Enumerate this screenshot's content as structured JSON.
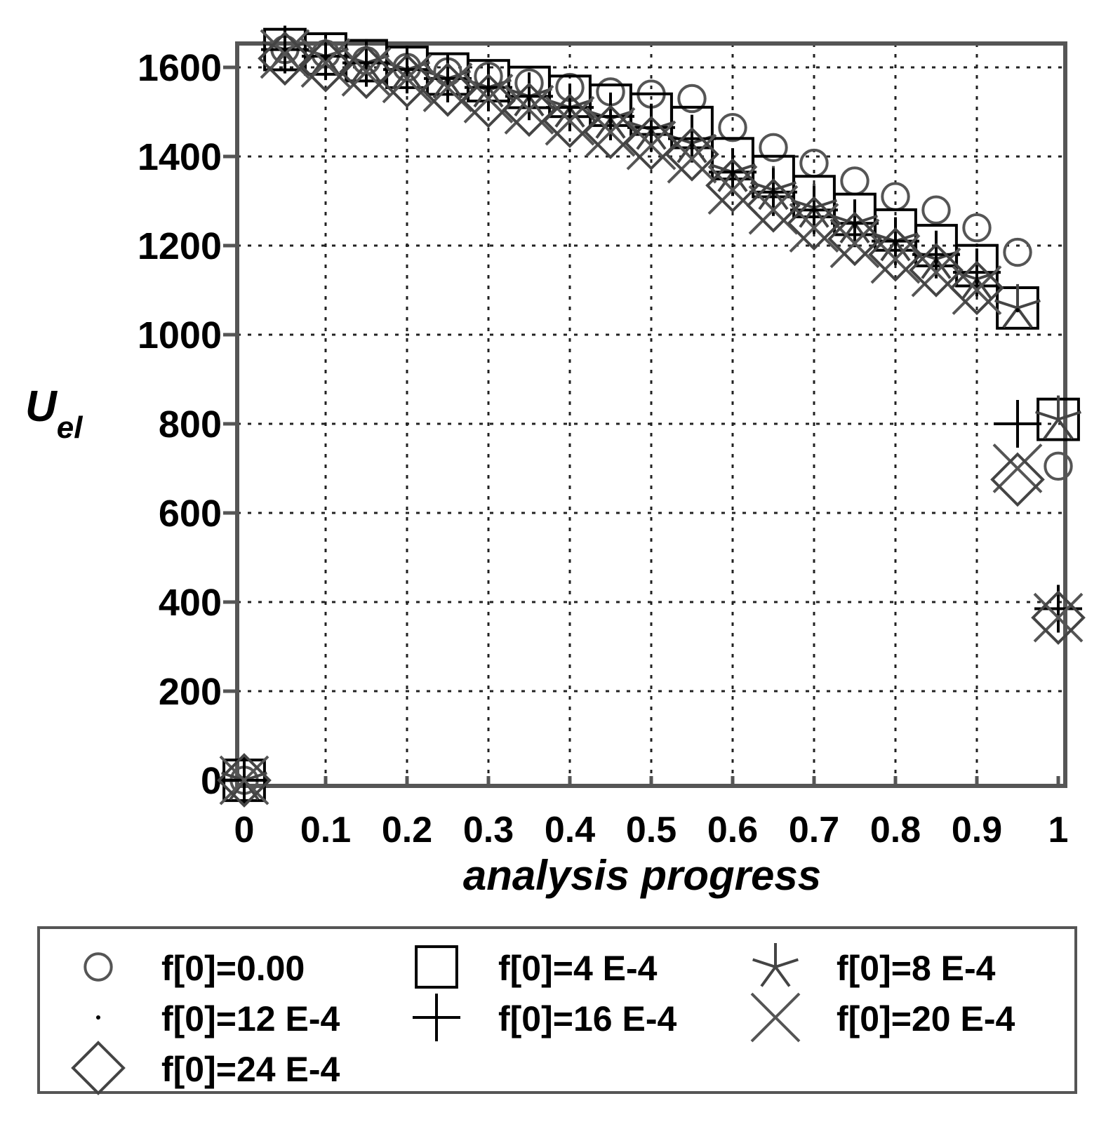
{
  "chart_data": {
    "type": "scatter",
    "title": "",
    "xlabel": "analysis progress",
    "ylabel_main": "U",
    "ylabel_sub": "el",
    "xlim": [
      0,
      1
    ],
    "ylim": [
      0,
      1650
    ],
    "xticks": [
      0,
      0.1,
      0.2,
      0.3,
      0.4,
      0.5,
      0.6,
      0.7,
      0.8,
      0.9,
      1
    ],
    "xtick_labels": [
      "0",
      "0.1",
      "0.2",
      "0.3",
      "0.4",
      "0.5",
      "0.6",
      "0.7",
      "0.8",
      "0.9",
      "1"
    ],
    "yticks": [
      0,
      200,
      400,
      600,
      800,
      1000,
      1200,
      1400,
      1600
    ],
    "ytick_labels": [
      "0",
      "200",
      "400",
      "600",
      "800",
      "1000",
      "1200",
      "1400",
      "1600"
    ],
    "grid": true,
    "legend_position": "bottom",
    "series": [
      {
        "name": "f[0]=0.00",
        "marker": "circle",
        "color": "#555555",
        "x": [
          0,
          0.05,
          0.1,
          0.15,
          0.2,
          0.25,
          0.3,
          0.35,
          0.4,
          0.45,
          0.5,
          0.55,
          0.6,
          0.65,
          0.7,
          0.75,
          0.8,
          0.85,
          0.9,
          0.95,
          1.0
        ],
        "y": [
          0,
          1640,
          1630,
          1615,
          1600,
          1590,
          1580,
          1565,
          1555,
          1545,
          1540,
          1530,
          1465,
          1420,
          1385,
          1345,
          1310,
          1280,
          1240,
          1185,
          705
        ]
      },
      {
        "name": "f[0]=4 E-4",
        "marker": "square",
        "color": "#000000",
        "x": [
          0,
          0.05,
          0.1,
          0.15,
          0.2,
          0.25,
          0.3,
          0.35,
          0.4,
          0.45,
          0.5,
          0.55,
          0.6,
          0.65,
          0.7,
          0.75,
          0.8,
          0.85,
          0.9,
          0.95,
          1.0
        ],
        "y": [
          0,
          1640,
          1630,
          1615,
          1600,
          1585,
          1570,
          1555,
          1535,
          1515,
          1495,
          1465,
          1395,
          1355,
          1310,
          1270,
          1235,
          1200,
          1155,
          1060,
          810
        ]
      },
      {
        "name": "f[0]=8 E-4",
        "marker": "star",
        "color": "#444444",
        "x": [
          0,
          0.05,
          0.1,
          0.15,
          0.2,
          0.25,
          0.3,
          0.35,
          0.4,
          0.45,
          0.5,
          0.55,
          0.6,
          0.65,
          0.7,
          0.75,
          0.8,
          0.85,
          0.9,
          0.95,
          1.0
        ],
        "y": [
          0,
          1640,
          1625,
          1610,
          1595,
          1575,
          1555,
          1535,
          1510,
          1485,
          1460,
          1430,
          1365,
          1325,
          1285,
          1250,
          1210,
          1170,
          1125,
          1060,
          810
        ]
      },
      {
        "name": "f[0]=12 E-4",
        "marker": "dot",
        "color": "#000000",
        "x": [
          0,
          0.05,
          0.1,
          0.15,
          0.2,
          0.25,
          0.3,
          0.35,
          0.4,
          0.45,
          0.5,
          0.55,
          0.6,
          0.65,
          0.7,
          0.75,
          0.8,
          0.85,
          0.9,
          0.95,
          1.0
        ],
        "y": [
          0,
          1638,
          1622,
          1607,
          1592,
          1572,
          1552,
          1530,
          1505,
          1480,
          1455,
          1425,
          1360,
          1320,
          1280,
          1245,
          1205,
          1165,
          1120,
          1055,
          385
        ]
      },
      {
        "name": "f[0]=16 E-4",
        "marker": "plus",
        "color": "#000000",
        "x": [
          0,
          0.05,
          0.1,
          0.15,
          0.2,
          0.25,
          0.3,
          0.35,
          0.4,
          0.45,
          0.5,
          0.55,
          0.6,
          0.65,
          0.7,
          0.75,
          0.8,
          0.85,
          0.9,
          0.95,
          1.0
        ],
        "y": [
          0,
          1640,
          1625,
          1610,
          1595,
          1575,
          1555,
          1535,
          1510,
          1490,
          1465,
          1440,
          1365,
          1320,
          1280,
          1250,
          1210,
          1180,
          1140,
          800,
          385
        ]
      },
      {
        "name": "f[0]=20 E-4",
        "marker": "x",
        "color": "#555555",
        "x": [
          0,
          0.05,
          0.1,
          0.15,
          0.2,
          0.25,
          0.3,
          0.35,
          0.4,
          0.45,
          0.5,
          0.55,
          0.6,
          0.65,
          0.7,
          0.75,
          0.8,
          0.85,
          0.9,
          0.95,
          1.0
        ],
        "y": [
          0,
          1630,
          1610,
          1590,
          1575,
          1555,
          1530,
          1505,
          1480,
          1455,
          1425,
          1395,
          1325,
          1280,
          1240,
          1205,
          1170,
          1140,
          1100,
          700,
          365
        ]
      },
      {
        "name": "f[0]=24 E-4",
        "marker": "diamond",
        "color": "#444444",
        "x": [
          0,
          0.05,
          0.1,
          0.15,
          0.2,
          0.25,
          0.3,
          0.35,
          0.4,
          0.45,
          0.5,
          0.55,
          0.6,
          0.65,
          0.7,
          0.75,
          0.8,
          0.85,
          0.9,
          0.95,
          1.0
        ],
        "y": [
          0,
          1620,
          1605,
          1590,
          1570,
          1550,
          1525,
          1505,
          1480,
          1455,
          1430,
          1405,
          1335,
          1290,
          1250,
          1215,
          1180,
          1145,
          1105,
          675,
          365
        ]
      }
    ]
  }
}
